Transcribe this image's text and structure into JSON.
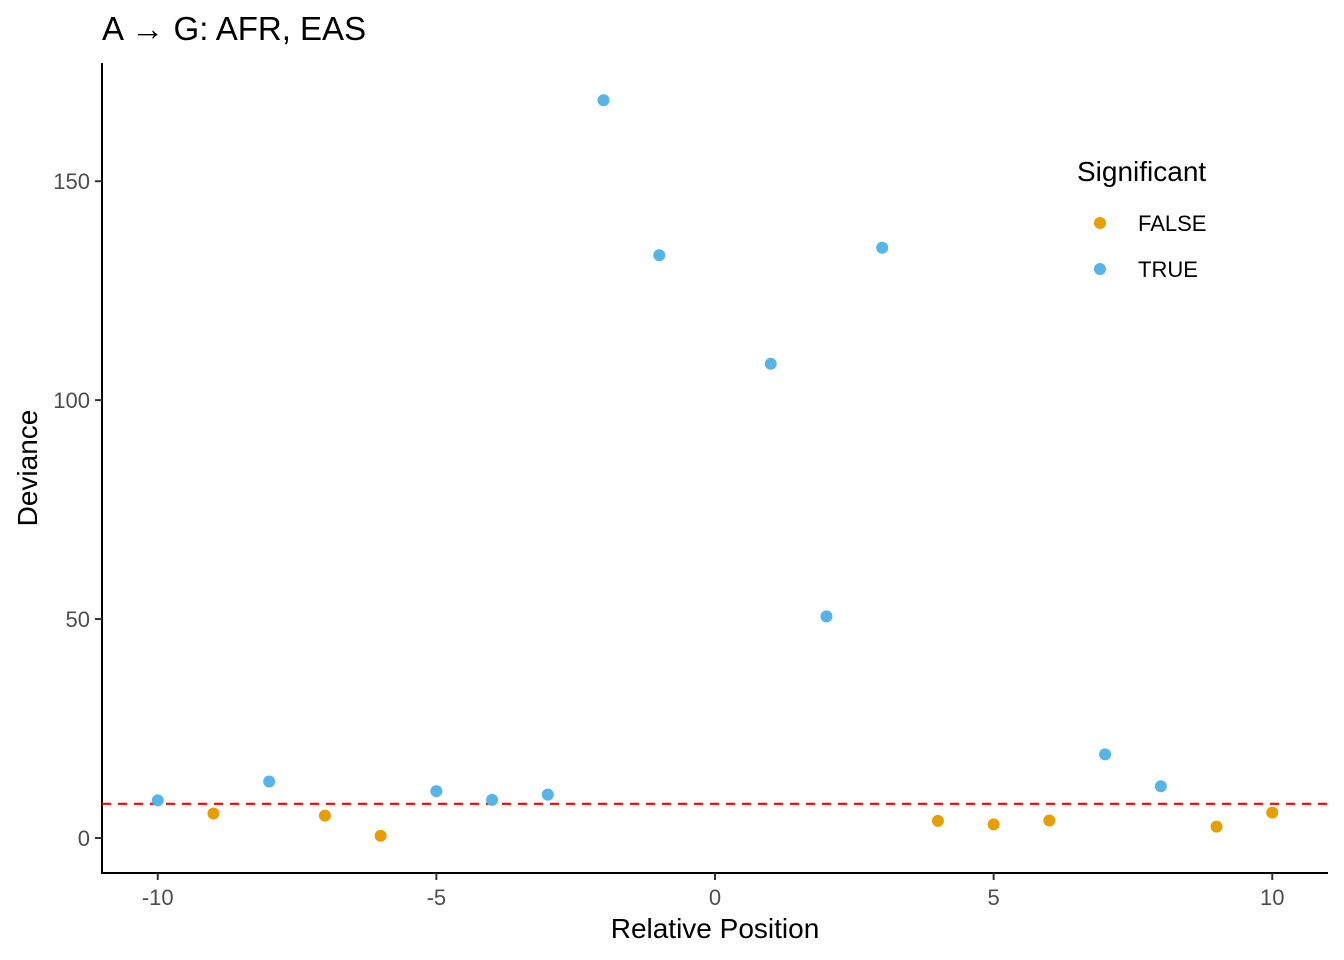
{
  "chart_data": {
    "type": "scatter",
    "title": "A → G: AFR, EAS",
    "xlabel": "Relative Position",
    "ylabel": "Deviance",
    "xlim": [
      -11,
      11
    ],
    "ylim": [
      -8,
      177
    ],
    "x_ticks": [
      -10,
      -5,
      0,
      5,
      10
    ],
    "x_tick_labels": [
      "-10",
      "-5",
      "0",
      "5",
      "10"
    ],
    "y_ticks": [
      0,
      50,
      100,
      150
    ],
    "y_tick_labels": [
      "0",
      "50",
      "100",
      "150"
    ],
    "grid": false,
    "threshold_line": {
      "y": 7.8,
      "color": "#ff0000",
      "style": "dashed"
    },
    "legend": {
      "title": "Significant",
      "position": "top-right",
      "items": [
        {
          "label": "FALSE",
          "color": "#E69F00"
        },
        {
          "label": "TRUE",
          "color": "#56B4E9"
        }
      ]
    },
    "series": [
      {
        "name": "FALSE",
        "color": "#E69F00",
        "points": [
          {
            "x": -9,
            "y": 5.6
          },
          {
            "x": -7,
            "y": 5.1
          },
          {
            "x": -6,
            "y": 0.5
          },
          {
            "x": 4,
            "y": 3.9
          },
          {
            "x": 5,
            "y": 3.1
          },
          {
            "x": 6,
            "y": 4.0
          },
          {
            "x": 9,
            "y": 2.6
          },
          {
            "x": 10,
            "y": 5.8
          }
        ]
      },
      {
        "name": "TRUE",
        "color": "#56B4E9",
        "points": [
          {
            "x": -10,
            "y": 8.6
          },
          {
            "x": -8,
            "y": 12.9
          },
          {
            "x": -5,
            "y": 10.7
          },
          {
            "x": -4,
            "y": 8.7
          },
          {
            "x": -3,
            "y": 9.9
          },
          {
            "x": -2,
            "y": 168.5
          },
          {
            "x": -1,
            "y": 133.1
          },
          {
            "x": 1,
            "y": 108.3
          },
          {
            "x": 2,
            "y": 50.6
          },
          {
            "x": 3,
            "y": 134.8
          },
          {
            "x": 7,
            "y": 19.1
          },
          {
            "x": 8,
            "y": 11.8
          }
        ]
      }
    ]
  }
}
